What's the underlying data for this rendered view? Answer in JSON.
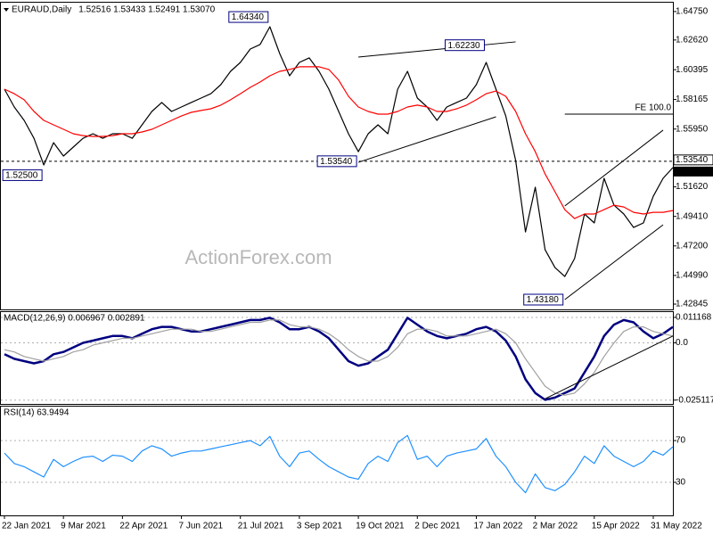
{
  "chart_data": [
    {
      "type": "line",
      "title": "EURAUD,Daily",
      "subtitle": "1.52516 1.53433 1.52491 1.53070",
      "watermark": "ActionForex.com",
      "categories": [
        "22 Jan 2021",
        null,
        null,
        null,
        null,
        null,
        "9 Mar 2021",
        null,
        null,
        null,
        null,
        null,
        "22 Apr 2021",
        null,
        null,
        null,
        null,
        null,
        "7 Jun 2021",
        null,
        null,
        null,
        null,
        null,
        "21 Jul 2021",
        null,
        null,
        null,
        null,
        null,
        "3 Sep 2021",
        null,
        null,
        null,
        null,
        null,
        "19 Oct 2021",
        null,
        null,
        null,
        null,
        null,
        "2 Dec 2021",
        null,
        null,
        null,
        null,
        null,
        "17 Jan 2022",
        null,
        null,
        null,
        null,
        null,
        "2 Mar 2022",
        null,
        null,
        null,
        null,
        null,
        "15 Apr 2022",
        null,
        null,
        null,
        null,
        null,
        "31 May 2022",
        null,
        null
      ],
      "series": [
        {
          "color": "#000000",
          "values": [
            1.5894,
            1.576,
            1.566,
            1.5526,
            1.5326,
            1.5493,
            1.5393,
            1.546,
            1.5526,
            1.556,
            1.5526,
            1.556,
            1.556,
            1.5526,
            1.5627,
            1.5727,
            1.5794,
            1.5727,
            1.576,
            1.5794,
            1.5827,
            1.586,
            1.5927,
            1.6027,
            1.6094,
            1.6194,
            1.6228,
            1.6361,
            1.6161,
            1.5994,
            1.6094,
            1.6128,
            1.6027,
            1.5894,
            1.5727,
            1.556,
            1.5426,
            1.556,
            1.5627,
            1.556,
            1.5894,
            1.6027,
            1.5827,
            1.576,
            1.566,
            1.576,
            1.5794,
            1.5827,
            1.5927,
            1.6094,
            1.5894,
            1.5693,
            1.5359,
            1.4825,
            1.5159,
            1.4691,
            1.4558,
            1.4491,
            1.4625,
            1.4959,
            1.4892,
            1.5226,
            1.5025,
            1.4959,
            1.4858,
            1.4892,
            1.5092,
            1.5226,
            1.5307
          ]
        },
        {
          "color": "#ff0000",
          "values": [
            1.5894,
            1.586,
            1.5814,
            1.5727,
            1.566,
            1.5627,
            1.5593,
            1.556,
            1.5546,
            1.554,
            1.554,
            1.5546,
            1.556,
            1.556,
            1.5573,
            1.5593,
            1.5627,
            1.566,
            1.5693,
            1.572,
            1.5734,
            1.5747,
            1.5774,
            1.5814,
            1.586,
            1.5907,
            1.5947,
            1.5994,
            1.6027,
            1.6041,
            1.6061,
            1.6061,
            1.6061,
            1.6041,
            1.5961,
            1.584,
            1.576,
            1.5727,
            1.5707,
            1.5707,
            1.5727,
            1.576,
            1.5774,
            1.576,
            1.5727,
            1.5727,
            1.5747,
            1.5774,
            1.5814,
            1.586,
            1.588,
            1.584,
            1.5727,
            1.556,
            1.5426,
            1.5259,
            1.5126,
            1.4992,
            1.4925,
            1.4959,
            1.4959,
            1.4992,
            1.5025,
            1.5012,
            1.4972,
            1.4959,
            1.4972,
            1.4972,
            1.4985
          ]
        }
      ],
      "ylim": [
        1.4258,
        1.6528
      ],
      "yticks": [
        {
          "value": 1.6475,
          "label": "1.64750"
        },
        {
          "value": 1.6262,
          "label": "1.62620"
        },
        {
          "value": 1.60395,
          "label": "1.60395"
        },
        {
          "value": 1.58165,
          "label": "1.58165"
        },
        {
          "value": 1.5595,
          "label": "1.55950"
        },
        {
          "value": 1.5162,
          "label": "1.51620"
        },
        {
          "value": 1.4941,
          "label": "1.49410"
        },
        {
          "value": 1.472,
          "label": "1.47200"
        },
        {
          "value": 1.4499,
          "label": "1.44990"
        },
        {
          "value": 1.42845,
          "label": "1.42845"
        }
      ],
      "annotations": [
        {
          "label": "1.64340",
          "value": 1.6434,
          "x": 27
        },
        {
          "label": "1.62230",
          "value": 1.6223,
          "x": 49
        },
        {
          "label": "1.53540",
          "value": 1.5354,
          "x": 36
        },
        {
          "label": "1.52500",
          "value": 1.525,
          "x": 4
        },
        {
          "label": "1.43180",
          "value": 1.4318,
          "x": 57
        }
      ],
      "trendlines": [
        {
          "x": [
            36,
            52
          ],
          "y": [
            1.6134,
            1.6248
          ]
        },
        {
          "x": [
            36,
            50
          ],
          "y": [
            1.5346,
            1.5687
          ]
        },
        {
          "x": [
            57,
            67
          ],
          "y": [
            1.5019,
            1.5587
          ]
        },
        {
          "x": [
            57,
            67
          ],
          "y": [
            1.4318,
            1.4878
          ]
        }
      ],
      "fe": {
        "label": "FE 100.0",
        "value": 1.5707,
        "x": [
          57,
          68
        ]
      },
      "level": {
        "value": 1.5354,
        "label": "1.53540"
      },
      "current": {
        "value": 1.5307,
        "label": "1.53070"
      }
    },
    {
      "type": "line",
      "title": "MACD(12,26,9) 0.006967 0.002891",
      "series": [
        {
          "color": "#000080",
          "values": [
            -0.005,
            -0.007,
            -0.008,
            -0.009,
            -0.008,
            -0.005,
            -0.004,
            -0.002,
            0.0,
            0.001,
            0.002,
            0.003,
            0.003,
            0.002,
            0.004,
            0.006,
            0.007,
            0.007,
            0.006,
            0.005,
            0.005,
            0.006,
            0.007,
            0.008,
            0.009,
            0.01,
            0.01,
            0.011,
            0.009,
            0.006,
            0.006,
            0.007,
            0.005,
            0.002,
            -0.003,
            -0.008,
            -0.01,
            -0.009,
            -0.006,
            -0.003,
            0.004,
            0.011,
            0.008,
            0.005,
            0.003,
            0.002,
            0.003,
            0.004,
            0.006,
            0.007,
            0.005,
            0.001,
            -0.006,
            -0.016,
            -0.022,
            -0.025,
            -0.024,
            -0.022,
            -0.02,
            -0.013,
            -0.006,
            0.003,
            0.008,
            0.01,
            0.009,
            0.005,
            0.002,
            0.004,
            0.007
          ]
        },
        {
          "color": "#a0a0a0",
          "values": [
            -0.003,
            -0.004,
            -0.006,
            -0.007,
            -0.008,
            -0.007,
            -0.006,
            -0.004,
            -0.003,
            -0.001,
            0.0,
            0.001,
            0.002,
            0.002,
            0.003,
            0.004,
            0.005,
            0.006,
            0.006,
            0.006,
            0.005,
            0.005,
            0.006,
            0.007,
            0.008,
            0.009,
            0.009,
            0.01,
            0.01,
            0.008,
            0.007,
            0.007,
            0.006,
            0.004,
            0.001,
            -0.003,
            -0.006,
            -0.008,
            -0.008,
            -0.006,
            -0.002,
            0.004,
            0.006,
            0.006,
            0.005,
            0.003,
            0.003,
            0.003,
            0.004,
            0.005,
            0.006,
            0.004,
            0.0,
            -0.007,
            -0.013,
            -0.019,
            -0.022,
            -0.023,
            -0.022,
            -0.018,
            -0.013,
            -0.006,
            0.0,
            0.005,
            0.007,
            0.007,
            0.005,
            0.004,
            0.003
          ]
        }
      ],
      "ylim": [
        -0.0264,
        0.0135
      ],
      "yticks": [
        0.011168,
        {
          "value": 0,
          "label": "0.0"
        },
        -0.025117
      ],
      "trendlines": [
        {
          "x": [
            55,
            68
          ],
          "y": [
            -0.0245,
            0.003
          ]
        }
      ]
    },
    {
      "type": "line",
      "title": "RSI(14) 63.9494",
      "series": [
        {
          "color": "#1e90ff",
          "values": [
            58,
            48,
            45,
            40,
            35,
            52,
            45,
            50,
            54,
            55,
            50,
            56,
            55,
            50,
            60,
            65,
            62,
            55,
            58,
            60,
            60,
            62,
            64,
            66,
            68,
            70,
            65,
            74,
            55,
            45,
            58,
            60,
            52,
            45,
            40,
            35,
            33,
            48,
            55,
            50,
            68,
            75,
            52,
            55,
            45,
            55,
            58,
            60,
            62,
            72,
            55,
            45,
            30,
            20,
            38,
            25,
            22,
            28,
            40,
            55,
            48,
            65,
            55,
            50,
            45,
            50,
            60,
            56,
            64
          ]
        }
      ],
      "ylim": [
        0,
        100
      ],
      "yticks": [
        70,
        30
      ]
    }
  ]
}
